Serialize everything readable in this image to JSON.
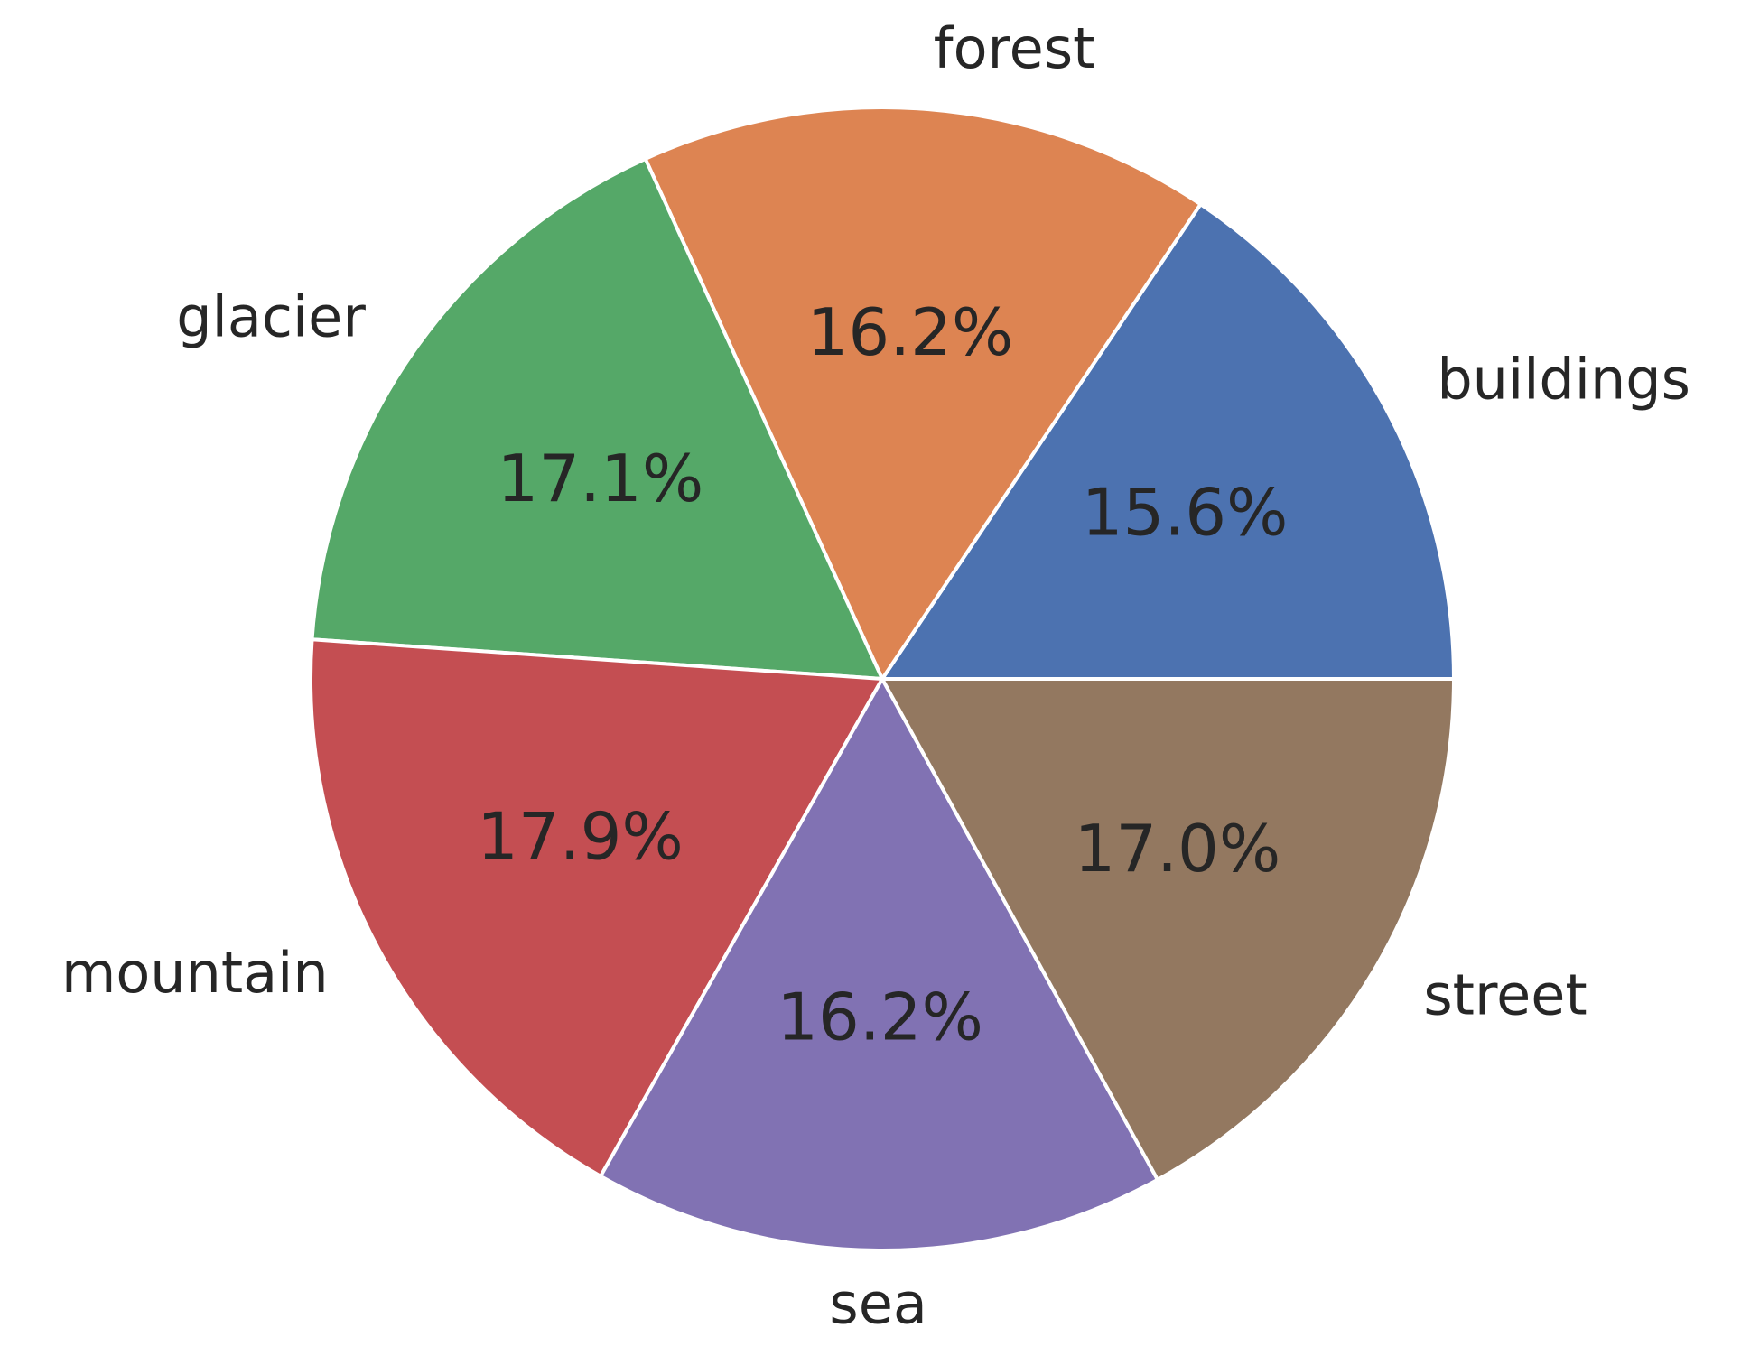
{
  "chart_data": {
    "type": "pie",
    "categories": [
      "buildings",
      "forest",
      "glacier",
      "mountain",
      "sea",
      "street"
    ],
    "values": [
      15.6,
      16.2,
      17.1,
      17.9,
      16.2,
      17.0
    ],
    "value_labels": [
      "15.6%",
      "16.2%",
      "17.1%",
      "17.9%",
      "16.2%",
      "17.0%"
    ],
    "colors": [
      "#4c72b0",
      "#dd8452",
      "#55a868",
      "#c44e52",
      "#8172b3",
      "#937860"
    ]
  }
}
